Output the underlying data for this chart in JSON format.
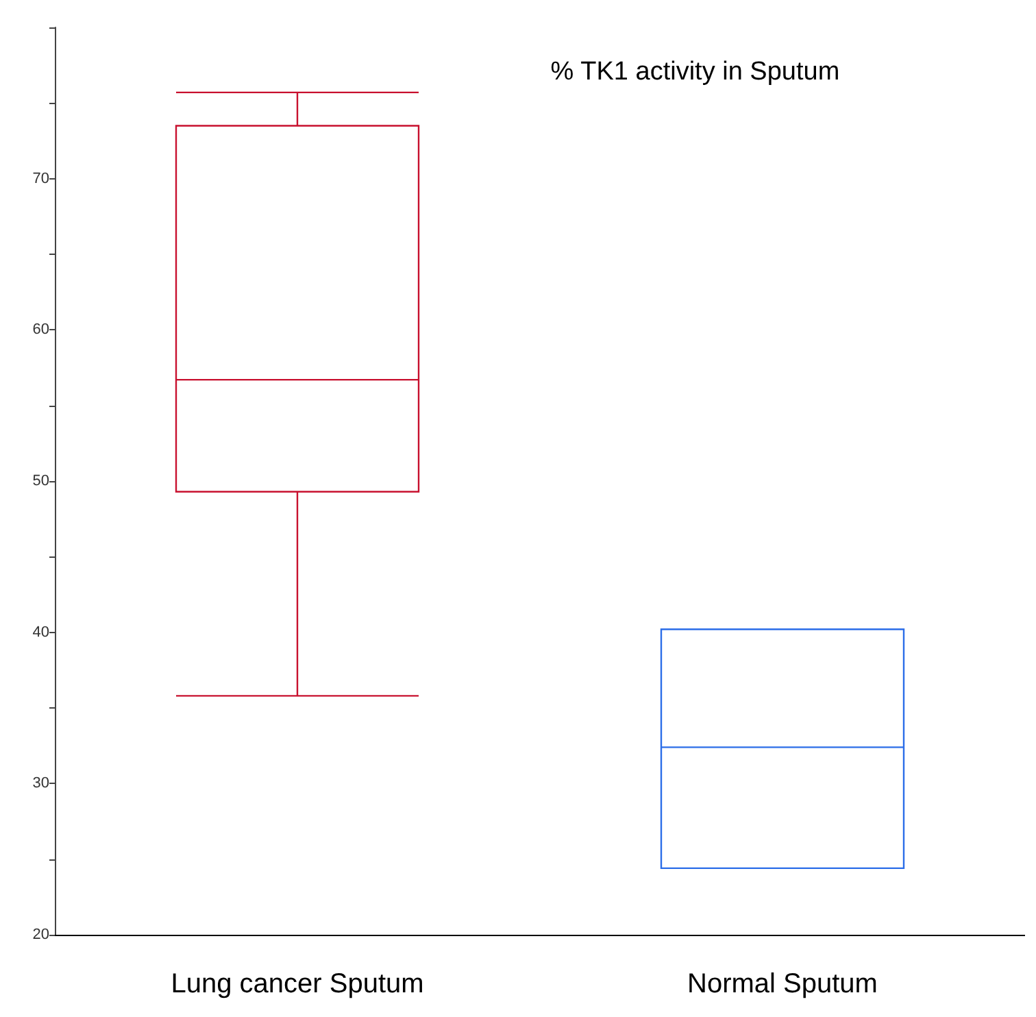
{
  "chart_data": {
    "type": "box",
    "title": "% TK1 activity in Sputum",
    "categories": [
      "Lung cancer Sputum",
      "Normal Sputum"
    ],
    "colors": [
      "#c8102e",
      "#2b6de8"
    ],
    "boxes": [
      {
        "low": 35.8,
        "q1": 49.3,
        "median": 56.7,
        "q3": 73.5,
        "high": 75.7
      },
      {
        "low": 24.4,
        "q1": 24.4,
        "median": 32.4,
        "q3": 40.2,
        "high": 40.2
      }
    ],
    "ylim": [
      20,
      80
    ],
    "yticks": [
      20,
      {
        "value": 25,
        "label": null
      },
      30,
      {
        "value": 35,
        "label": null
      },
      40,
      {
        "value": 45,
        "label": null
      },
      50,
      {
        "value": 55,
        "label": null
      },
      60,
      {
        "value": 65,
        "label": null
      },
      70,
      {
        "value": 75,
        "label": null
      },
      {
        "value": 80,
        "label": null
      }
    ],
    "grid": false
  }
}
